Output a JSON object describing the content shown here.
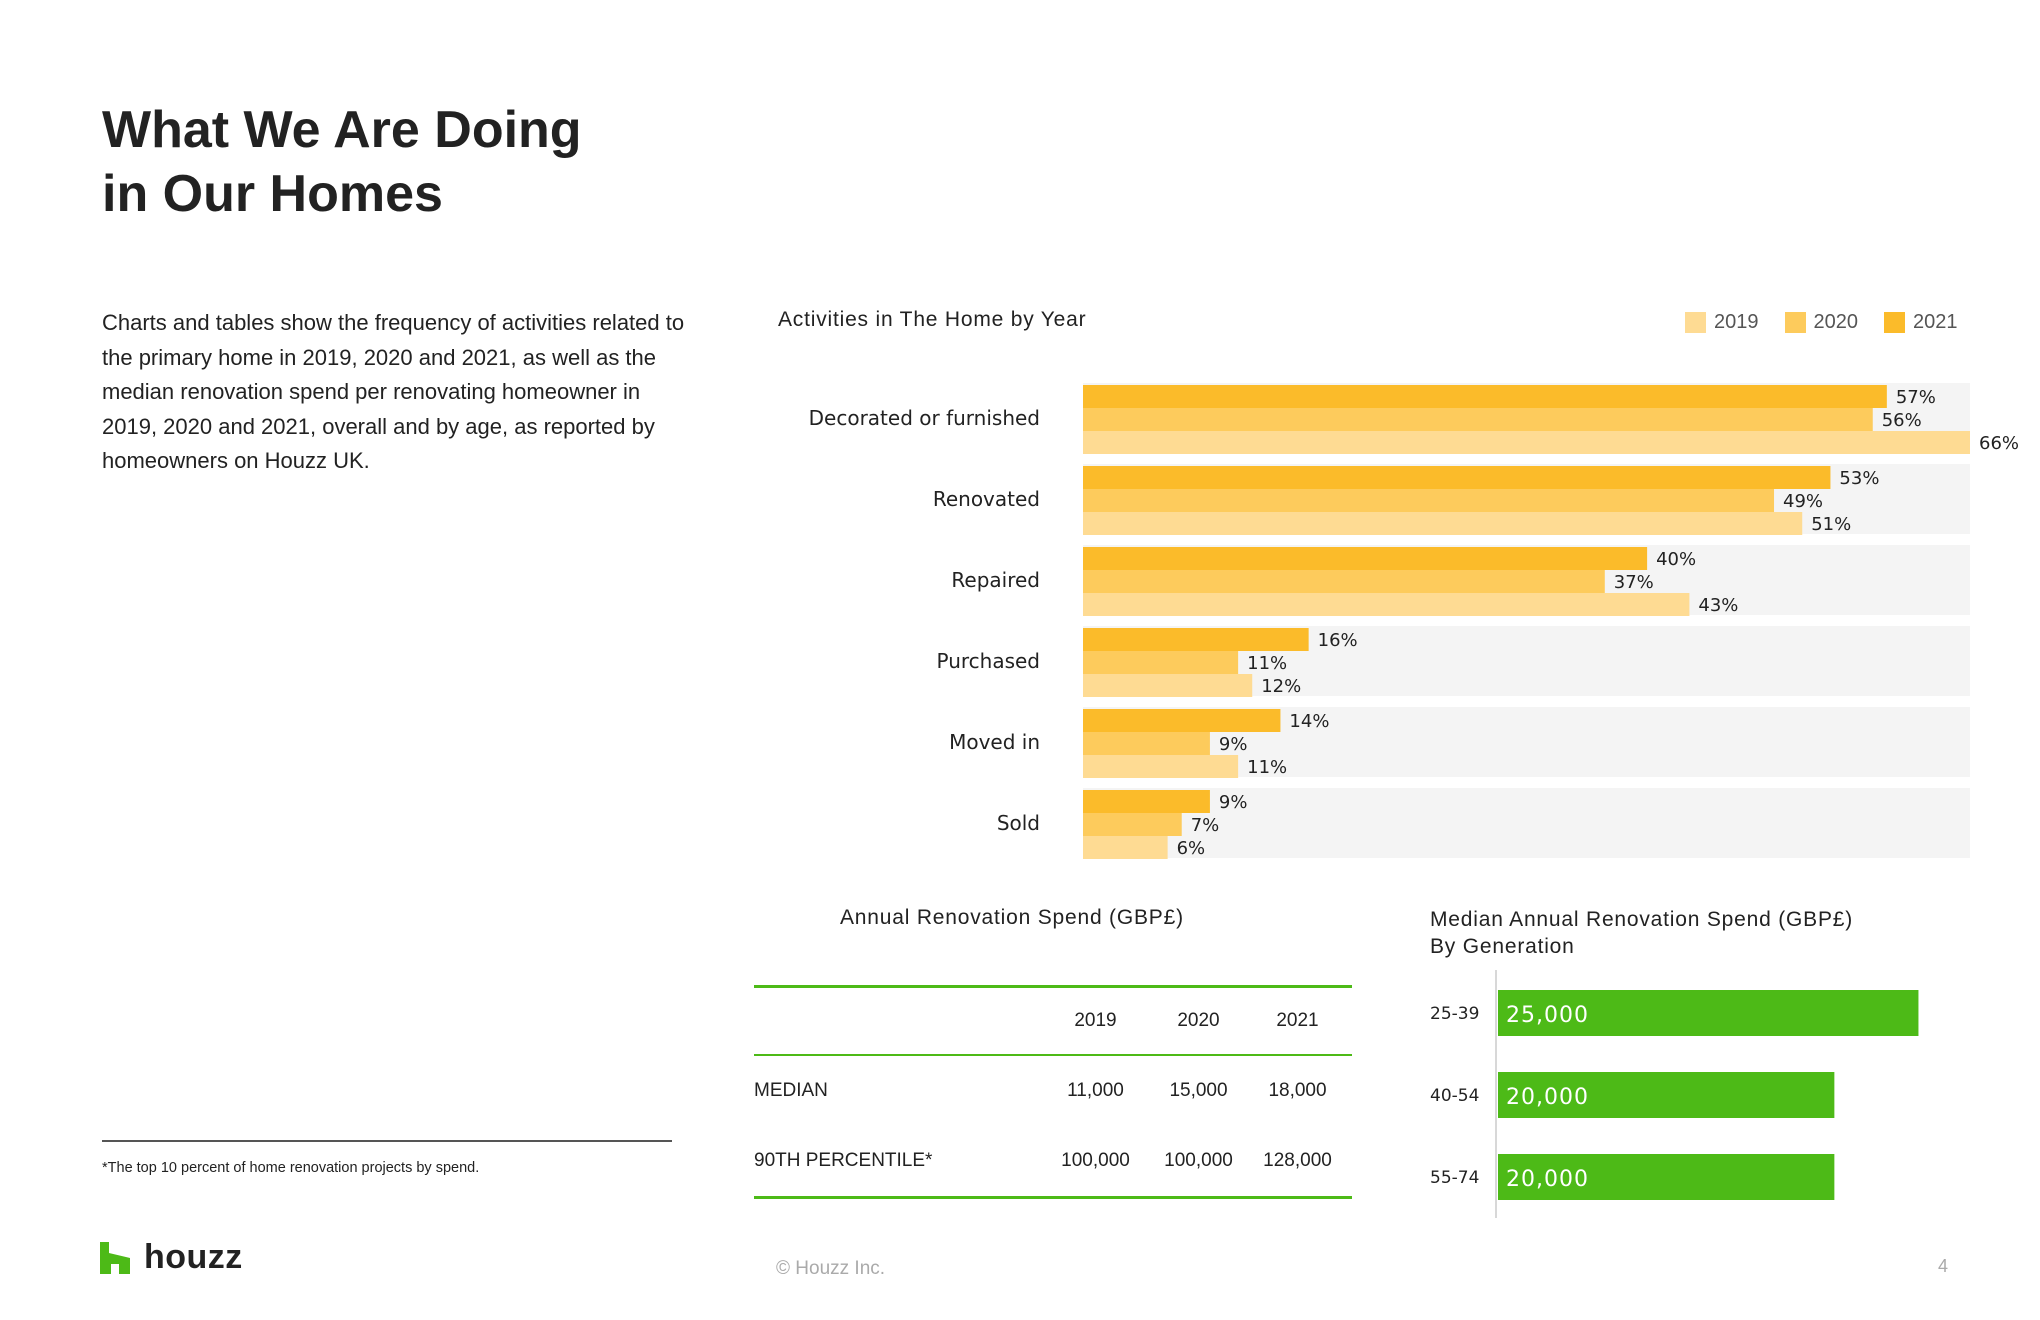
{
  "page": {
    "title_line1": "What We Are Doing",
    "title_line2": "in Our Homes",
    "description": "Charts and tables show the frequency of activities related to the primary home in 2019, 2020 and 2021, as well as the median renovation spend per renovating homeowner in 2019, 2020 and 2021, overall and by age, as reported by homeowners on Houzz UK.",
    "footnote": "*The top 10 percent of home renovation projects by spend.",
    "logo_text": "houzz",
    "copyright": "© Houzz Inc.",
    "page_number": "4"
  },
  "colors": {
    "y2019": "#fedb93",
    "y2020": "#fdcb5c",
    "y2021": "#fbbb2a",
    "track": "#f4f4f4",
    "green": "#4dba17",
    "text": "#222222"
  },
  "chart_data": [
    {
      "type": "bar",
      "orientation": "horizontal",
      "title": "Activities in The Home by Year",
      "categories": [
        "Decorated or furnished",
        "Renovated",
        "Repaired",
        "Purchased",
        "Moved in",
        "Sold"
      ],
      "series": [
        {
          "name": "2021",
          "values": [
            57,
            53,
            40,
            16,
            14,
            9
          ]
        },
        {
          "name": "2020",
          "values": [
            56,
            49,
            37,
            11,
            9,
            7
          ]
        },
        {
          "name": "2019",
          "values": [
            66,
            51,
            43,
            12,
            11,
            6
          ]
        }
      ],
      "legend": [
        "2019",
        "2020",
        "2021"
      ],
      "value_suffix": "%",
      "xlim": [
        0,
        78
      ],
      "legend_position": "top-right",
      "grid": false
    },
    {
      "type": "table",
      "title": "Annual Renovation Spend (GBP£)",
      "columns": [
        "",
        "2019",
        "2020",
        "2021"
      ],
      "rows": [
        {
          "label": "MEDIAN",
          "values": [
            "11,000",
            "15,000",
            "18,000"
          ]
        },
        {
          "label": "90TH PERCENTILE*",
          "values": [
            "100,000",
            "100,000",
            "128,000"
          ]
        }
      ]
    },
    {
      "type": "bar",
      "orientation": "horizontal",
      "title_line1": "Median Annual Renovation Spend (GBP£)",
      "title_line2": "By Generation",
      "categories": [
        "25-39",
        "40-54",
        "55-74"
      ],
      "values": [
        25000,
        20000,
        20000
      ],
      "labels": [
        "25,000",
        "20,000",
        "20,000"
      ],
      "xlim": [
        0,
        44000
      ]
    }
  ]
}
